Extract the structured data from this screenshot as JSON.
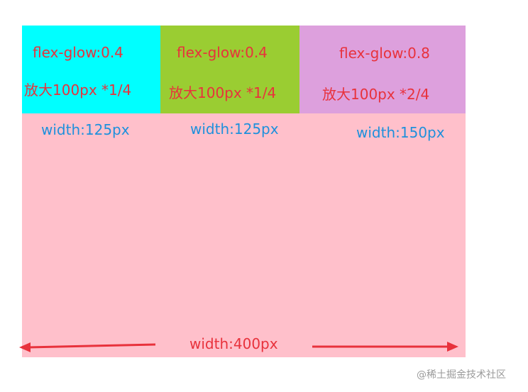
{
  "boxes": [
    {
      "flex": "flex-glow:0.4",
      "grow_note": "放大100px *1/4",
      "width": "width:125px"
    },
    {
      "flex": "flex-glow:0.4",
      "grow_note": "放大100px *1/4",
      "width": "width:125px"
    },
    {
      "flex": "flex-glow:0.8",
      "grow_note": "放大100px *2/4",
      "width": "width:150px"
    }
  ],
  "container": {
    "width": "width:400px"
  },
  "watermark": "@稀土掘金技术社区",
  "colors": {
    "container": "#FFC0CB",
    "box_1": "#00FFFF",
    "box_2": "#9ACD32",
    "box_3": "#DDA0DD",
    "label_red": "#E8323C",
    "label_blue": "#1E90DC",
    "arrow": "#E8323C"
  }
}
